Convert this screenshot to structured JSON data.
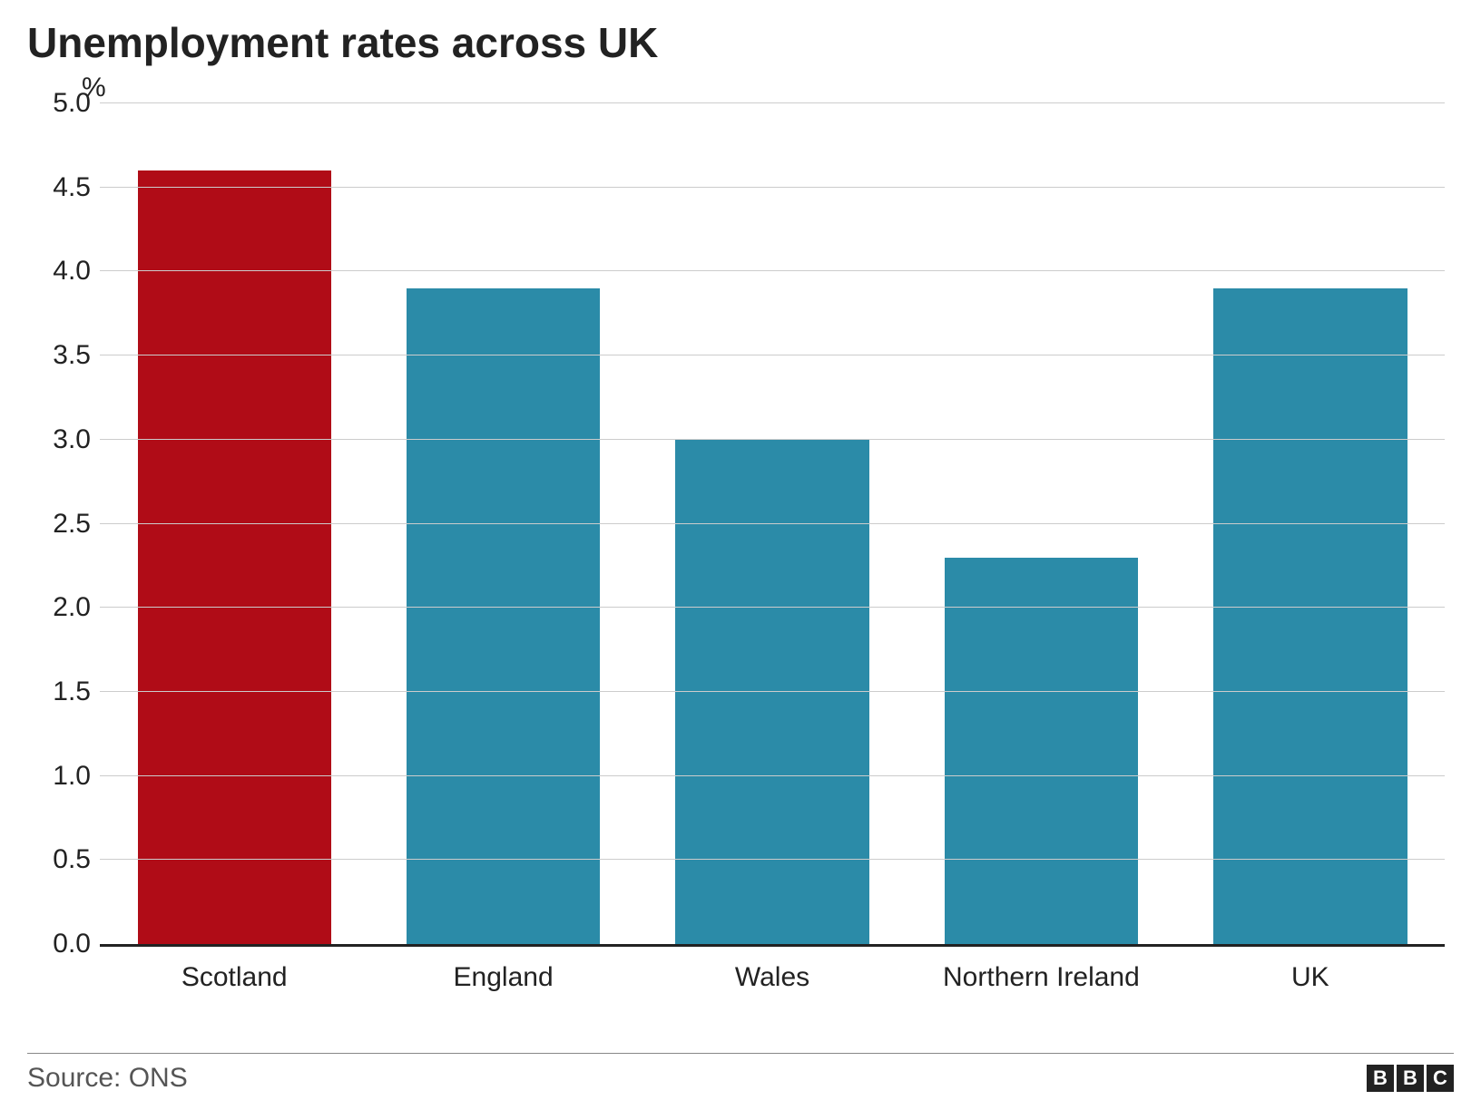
{
  "chart": {
    "type": "bar",
    "title": "Unemployment rates across UK",
    "title_fontsize": 46,
    "title_fontweight": "bold",
    "ylabel_unit": "%",
    "ylabel_fontsize": 30,
    "categories": [
      "Scotland",
      "England",
      "Wales",
      "Northern Ireland",
      "UK"
    ],
    "values": [
      4.6,
      3.9,
      3.0,
      2.3,
      3.9
    ],
    "bar_colors": [
      "#b00c17",
      "#2b8ba8",
      "#2b8ba8",
      "#2b8ba8",
      "#2b8ba8"
    ],
    "bar_width": 0.72,
    "ylim": [
      0.0,
      5.0
    ],
    "ytick_step": 0.5,
    "yticks": [
      "0.0",
      "0.5",
      "1.0",
      "1.5",
      "2.0",
      "2.5",
      "3.0",
      "3.5",
      "4.0",
      "4.5",
      "5.0"
    ],
    "grid_color": "#cccccc",
    "axis_color": "#222222",
    "background_color": "#ffffff",
    "tick_fontsize": 30
  },
  "footer": {
    "source_text": "Source: ONS",
    "source_fontsize": 30,
    "source_color": "#555555",
    "divider_color": "#888888",
    "logo_letters": [
      "B",
      "B",
      "C"
    ],
    "logo_bg": "#222222",
    "logo_fg": "#ffffff"
  }
}
